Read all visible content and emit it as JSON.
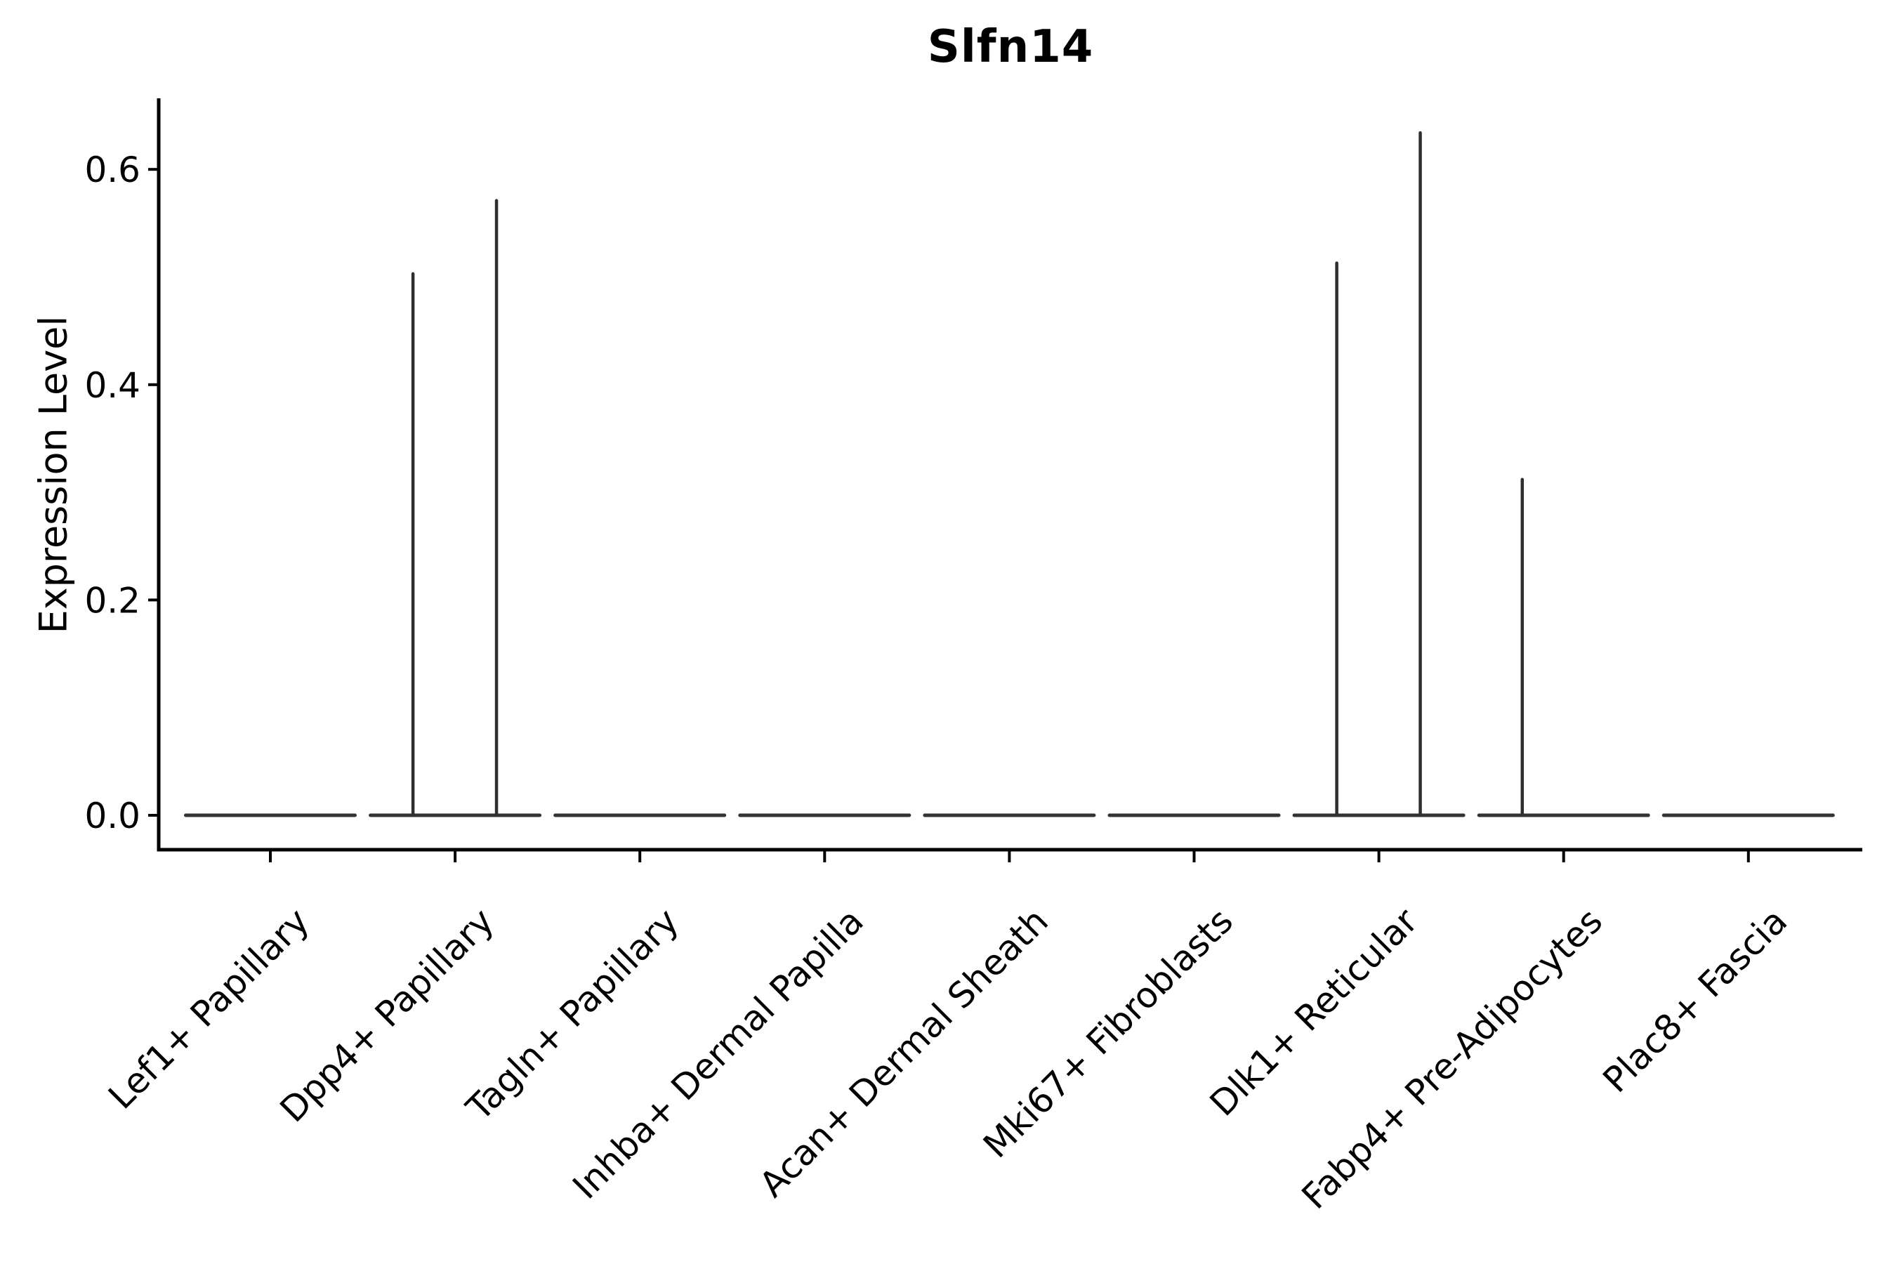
{
  "title": "Slfn14",
  "chart_data": {
    "type": "violin",
    "title": "Slfn14",
    "ylabel": "Expression Level",
    "xlabel": "",
    "yticks": [
      0.0,
      0.2,
      0.4,
      0.6
    ],
    "ytick_labels": [
      "0.0",
      "0.2",
      "0.4",
      "0.6"
    ],
    "ylim": [
      -0.032,
      0.665
    ],
    "grid": false,
    "legend": "none",
    "x_label_rotation_deg": 45,
    "categories": [
      "Lef1+ Papillary",
      "Dpp4+ Papillary",
      "Tagln+ Papillary",
      "Inhba+ Dermal Papilla",
      "Acan+ Dermal Sheath",
      "Mki67+ Fibroblasts",
      "Dlk1+ Reticular",
      "Fabp4+ Pre-Adipocytes",
      "Plac8+ Fascia"
    ],
    "violins": [
      {
        "category": "Lef1+ Papillary",
        "body_value": 0.0,
        "spikes": []
      },
      {
        "category": "Dpp4+ Papillary",
        "body_value": 0.0,
        "spikes": [
          {
            "offset_frac": -0.228,
            "value": 0.503
          },
          {
            "offset_frac": 0.224,
            "value": 0.571
          }
        ]
      },
      {
        "category": "Tagln+ Papillary",
        "body_value": 0.0,
        "spikes": []
      },
      {
        "category": "Inhba+ Dermal Papilla",
        "body_value": 0.0,
        "spikes": []
      },
      {
        "category": "Acan+ Dermal Sheath",
        "body_value": 0.0,
        "spikes": []
      },
      {
        "category": "Mki67+ Fibroblasts",
        "body_value": 0.0,
        "spikes": []
      },
      {
        "category": "Dlk1+ Reticular",
        "body_value": 0.0,
        "spikes": [
          {
            "offset_frac": -0.228,
            "value": 0.513
          },
          {
            "offset_frac": 0.224,
            "value": 0.634
          }
        ]
      },
      {
        "category": "Fabp4+ Pre-Adipocytes",
        "body_value": 0.0,
        "spikes": [
          {
            "offset_frac": -0.224,
            "value": 0.312
          }
        ]
      },
      {
        "category": "Plac8+ Fascia",
        "body_value": 0.0,
        "spikes": []
      }
    ],
    "colors": {
      "violin_line": "#333333",
      "spike_line": "#2e2e2e",
      "axis": "#000000",
      "text": "#000000"
    }
  }
}
